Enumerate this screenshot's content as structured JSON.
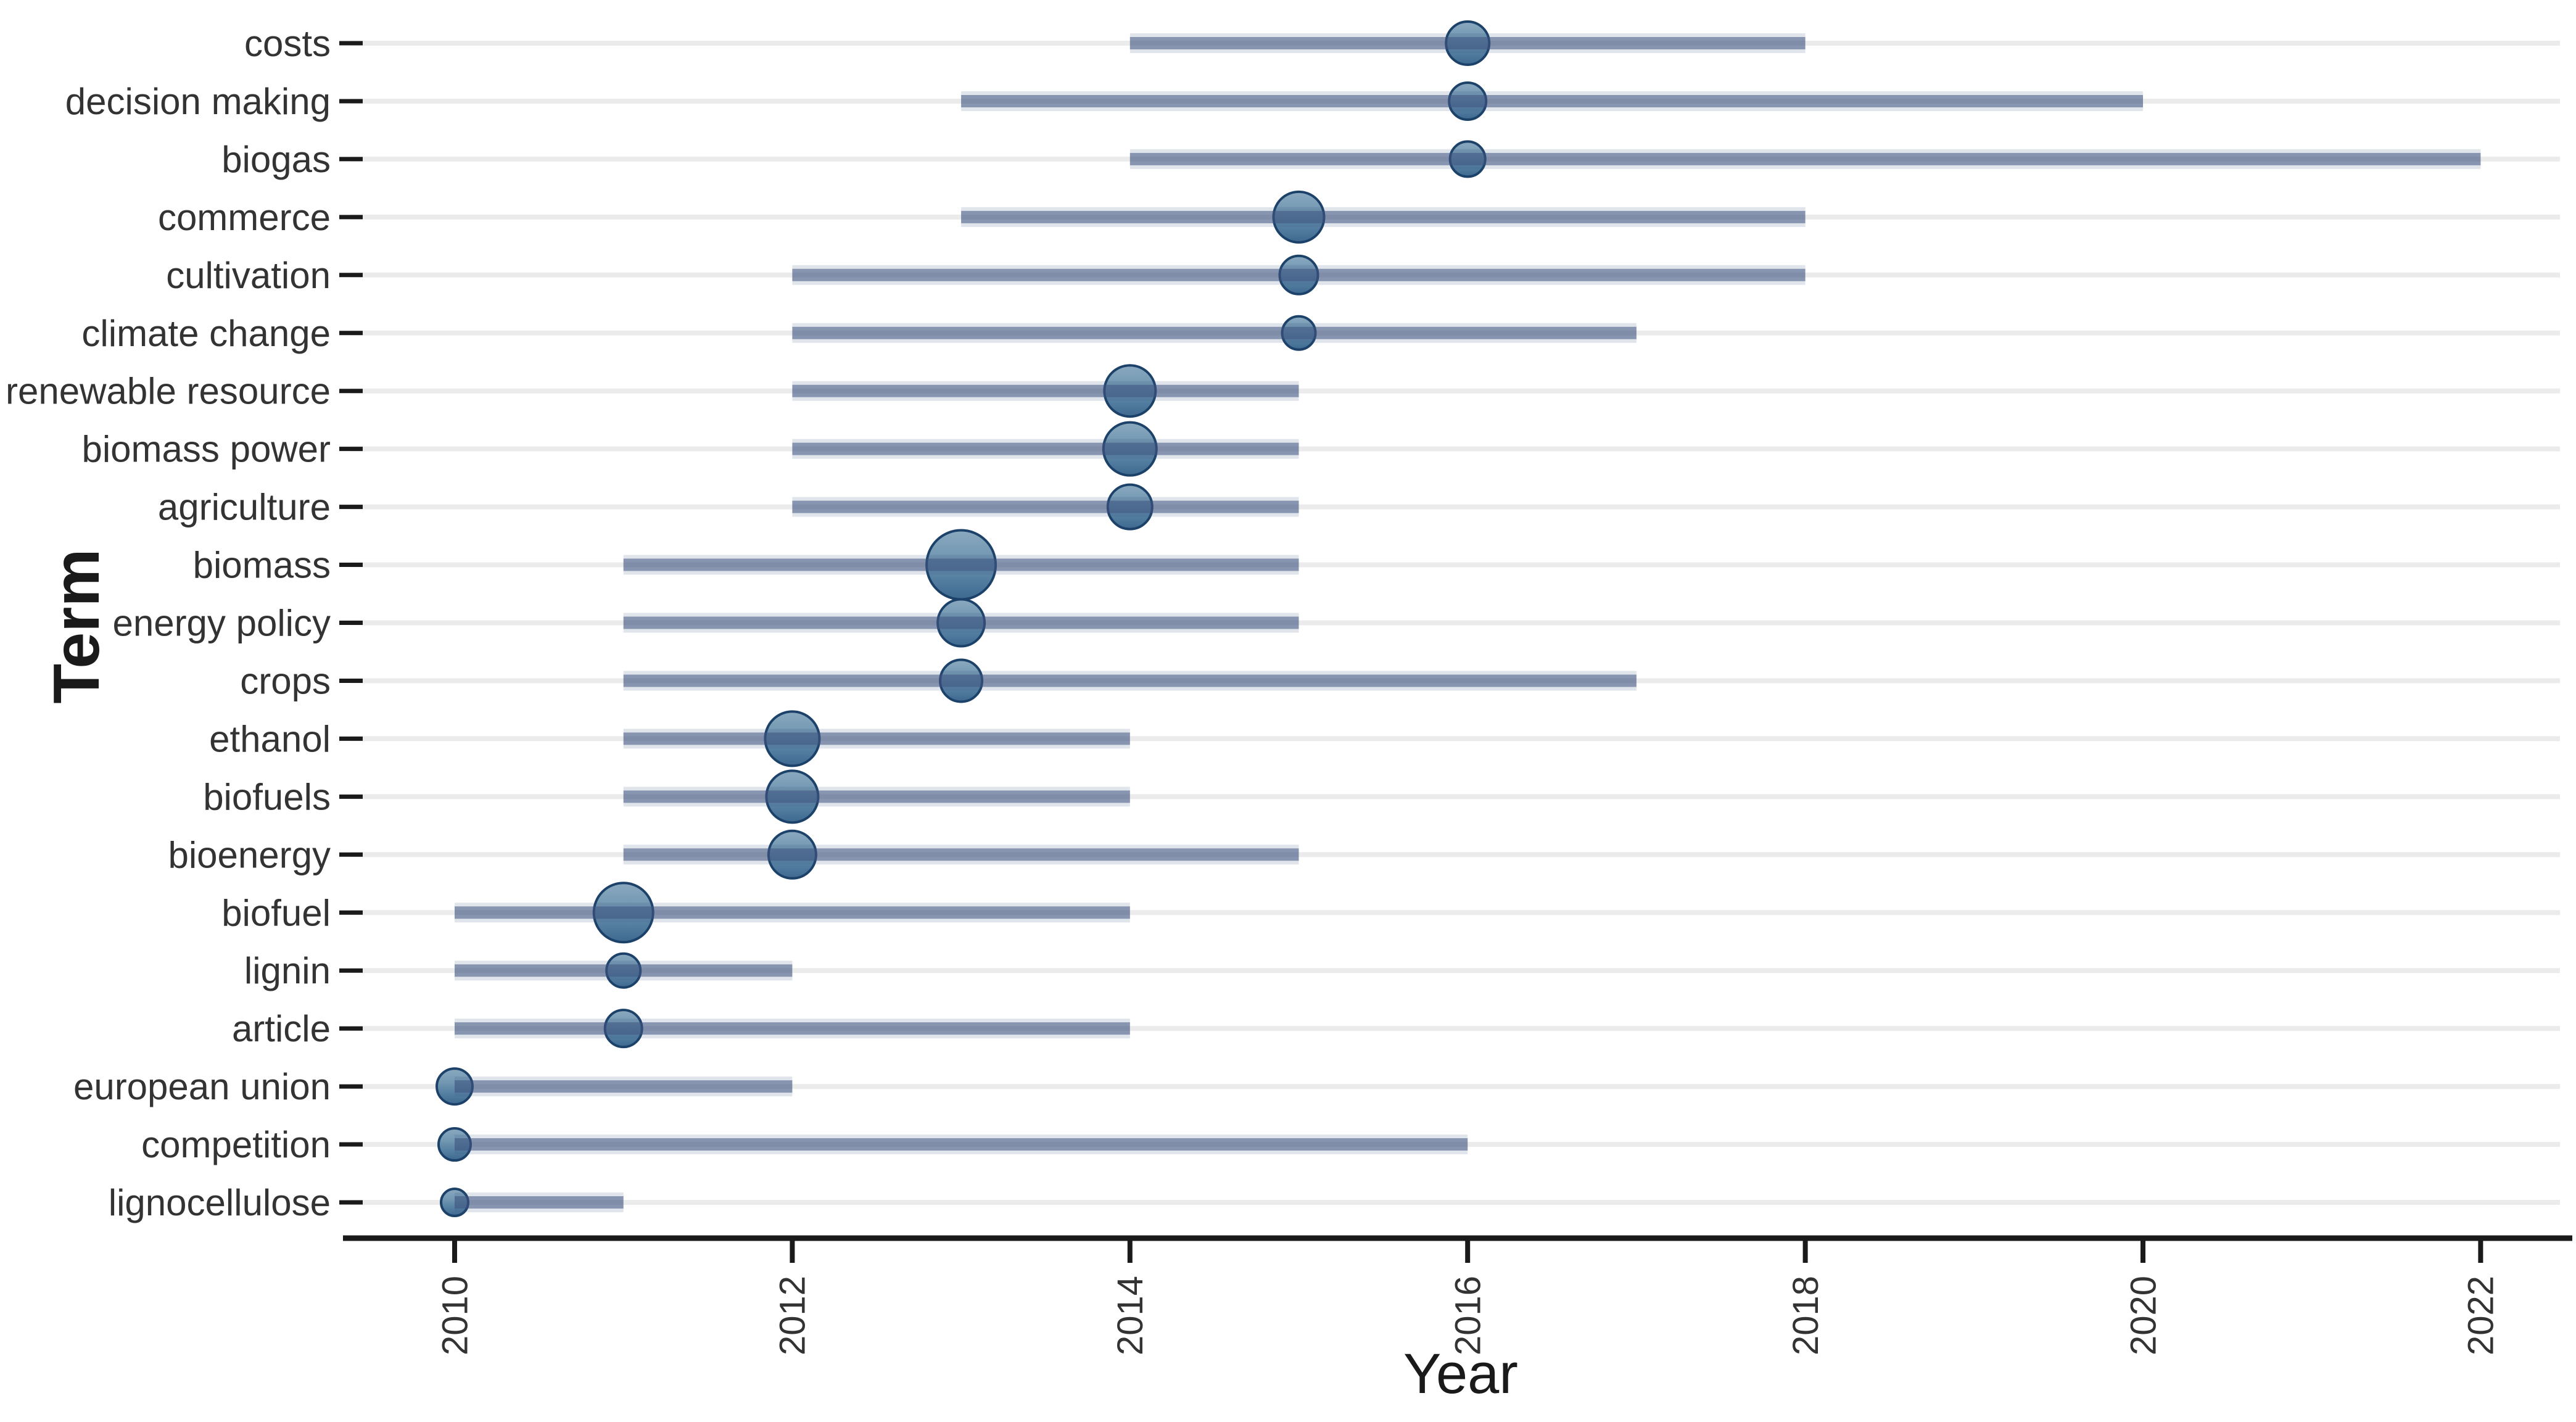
{
  "axes": {
    "x_title": "Year",
    "y_title": "Term",
    "x_ticks": [
      "2010",
      "2012",
      "2014",
      "2016",
      "2018",
      "2020",
      "2022"
    ]
  },
  "colors": {
    "background": "#ffffff",
    "row_line": "#ebebeb",
    "axis": "#1a1a1a",
    "label_text": "#333333",
    "segment_core": "rgba(62,84,128,0.55)",
    "segment_halo": "rgba(62,84,128,0.16)",
    "bubble_fill_top": "#84a4bc",
    "bubble_fill_mid": "#5d87a8",
    "bubble_fill_bottom": "#33608a",
    "bubble_stroke": "#1d4269"
  },
  "chart_data": {
    "type": "scatter",
    "subtype": "trend-topics-bubble-range",
    "title": "",
    "xlabel": "Year",
    "ylabel": "Term",
    "x_range": [
      2009.4,
      2022.6
    ],
    "x_tick_years": [
      2010,
      2012,
      2014,
      2016,
      2018,
      2020,
      2022
    ],
    "x_tick_label_rotation_deg": -90,
    "grid": "per-term light gray full-width row lines",
    "legend": "none",
    "encoding": "horizontal bar = first–third quartile year range; bubble = peak (median) year, bubble area = term frequency",
    "terms": [
      {
        "term": "costs",
        "year_q1": 2014,
        "year_peak": 2016,
        "year_q3": 2018,
        "bubble_size_px": 70
      },
      {
        "term": "decision making",
        "year_q1": 2013,
        "year_peak": 2016,
        "year_q3": 2020,
        "bubble_size_px": 60
      },
      {
        "term": "biogas",
        "year_q1": 2014,
        "year_peak": 2016,
        "year_q3": 2022,
        "bubble_size_px": 57
      },
      {
        "term": "commerce",
        "year_q1": 2013,
        "year_peak": 2015,
        "year_q3": 2018,
        "bubble_size_px": 82
      },
      {
        "term": "cultivation",
        "year_q1": 2012,
        "year_peak": 2015,
        "year_q3": 2018,
        "bubble_size_px": 62
      },
      {
        "term": "climate change",
        "year_q1": 2012,
        "year_peak": 2015,
        "year_q3": 2017,
        "bubble_size_px": 54
      },
      {
        "term": "renewable resource",
        "year_q1": 2012,
        "year_peak": 2014,
        "year_q3": 2015,
        "bubble_size_px": 83
      },
      {
        "term": "biomass power",
        "year_q1": 2012,
        "year_peak": 2014,
        "year_q3": 2015,
        "bubble_size_px": 86
      },
      {
        "term": "agriculture",
        "year_q1": 2012,
        "year_peak": 2014,
        "year_q3": 2015,
        "bubble_size_px": 72
      },
      {
        "term": "biomass",
        "year_q1": 2011,
        "year_peak": 2013,
        "year_q3": 2015,
        "bubble_size_px": 112
      },
      {
        "term": "energy policy",
        "year_q1": 2011,
        "year_peak": 2013,
        "year_q3": 2015,
        "bubble_size_px": 76
      },
      {
        "term": "crops",
        "year_q1": 2011,
        "year_peak": 2013,
        "year_q3": 2017,
        "bubble_size_px": 68
      },
      {
        "term": "ethanol",
        "year_q1": 2011,
        "year_peak": 2012,
        "year_q3": 2014,
        "bubble_size_px": 88
      },
      {
        "term": "biofuels",
        "year_q1": 2011,
        "year_peak": 2012,
        "year_q3": 2014,
        "bubble_size_px": 84
      },
      {
        "term": "bioenergy",
        "year_q1": 2011,
        "year_peak": 2012,
        "year_q3": 2015,
        "bubble_size_px": 77
      },
      {
        "term": "biofuel",
        "year_q1": 2010,
        "year_peak": 2011,
        "year_q3": 2014,
        "bubble_size_px": 96
      },
      {
        "term": "lignin",
        "year_q1": 2010,
        "year_peak": 2011,
        "year_q3": 2012,
        "bubble_size_px": 55
      },
      {
        "term": "article",
        "year_q1": 2010,
        "year_peak": 2011,
        "year_q3": 2014,
        "bubble_size_px": 60
      },
      {
        "term": "european union",
        "year_q1": 2010,
        "year_peak": 2010,
        "year_q3": 2012,
        "bubble_size_px": 58
      },
      {
        "term": "competition",
        "year_q1": 2010,
        "year_peak": 2010,
        "year_q3": 2016,
        "bubble_size_px": 52
      },
      {
        "term": "lignocellulose",
        "year_q1": 2010,
        "year_peak": 2010,
        "year_q3": 2011,
        "bubble_size_px": 44
      }
    ]
  }
}
